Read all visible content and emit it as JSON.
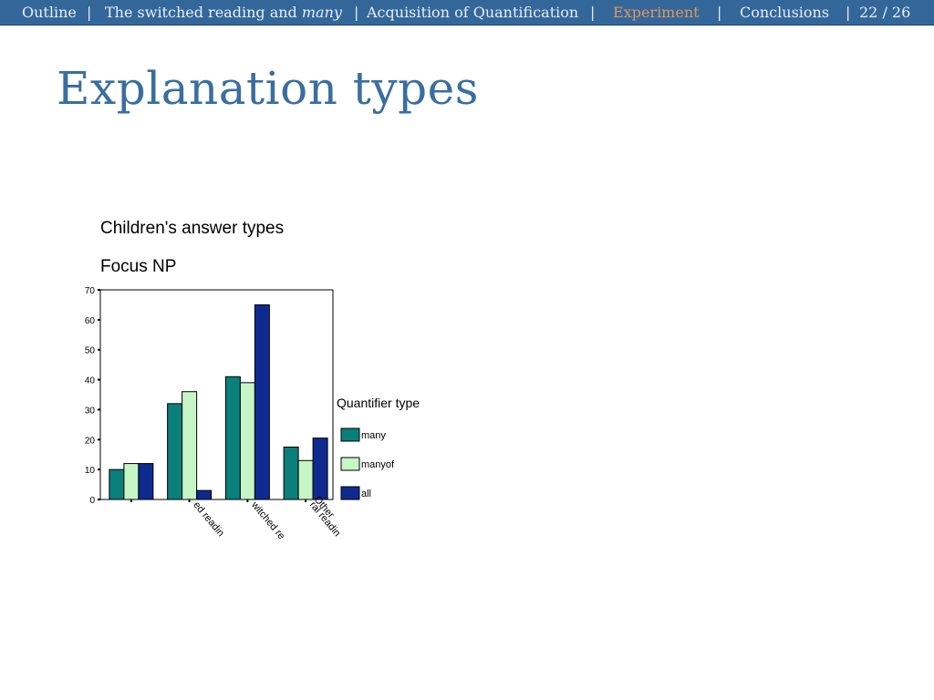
{
  "nav": {
    "outline": "Outline",
    "sep": "|",
    "switched_prefix": "The switched reading and",
    "switched_em": "many",
    "acquisition": "Acquisition of Quantification",
    "experiment": "Experiment",
    "conclusions": "Conclusions",
    "page": "22 / 26",
    "active_color": "#e3975a",
    "bar_color": "#33679a"
  },
  "slide": {
    "title": "Explanation types"
  },
  "chart_data": {
    "type": "bar",
    "title": "Children's answer types",
    "subtitle": "Focus NP",
    "categories": [
      "",
      "ed readin",
      "witched re",
      "ral readin"
    ],
    "extra_label": "Other",
    "ylim": [
      0,
      70
    ],
    "yticks": [
      0,
      10,
      20,
      30,
      40,
      50,
      60,
      70
    ],
    "legend_title": "Quantifier type",
    "legend_position": "right",
    "grid": false,
    "series": [
      {
        "name": "many",
        "color": "#0a7f7b",
        "values": [
          10,
          32,
          41,
          17.5
        ]
      },
      {
        "name": "manyof",
        "color": "#c6f5c6",
        "values": [
          12,
          36,
          39,
          13
        ]
      },
      {
        "name": "all",
        "color": "#0f2a8f",
        "values": [
          12,
          3,
          65,
          20.5
        ]
      }
    ]
  }
}
